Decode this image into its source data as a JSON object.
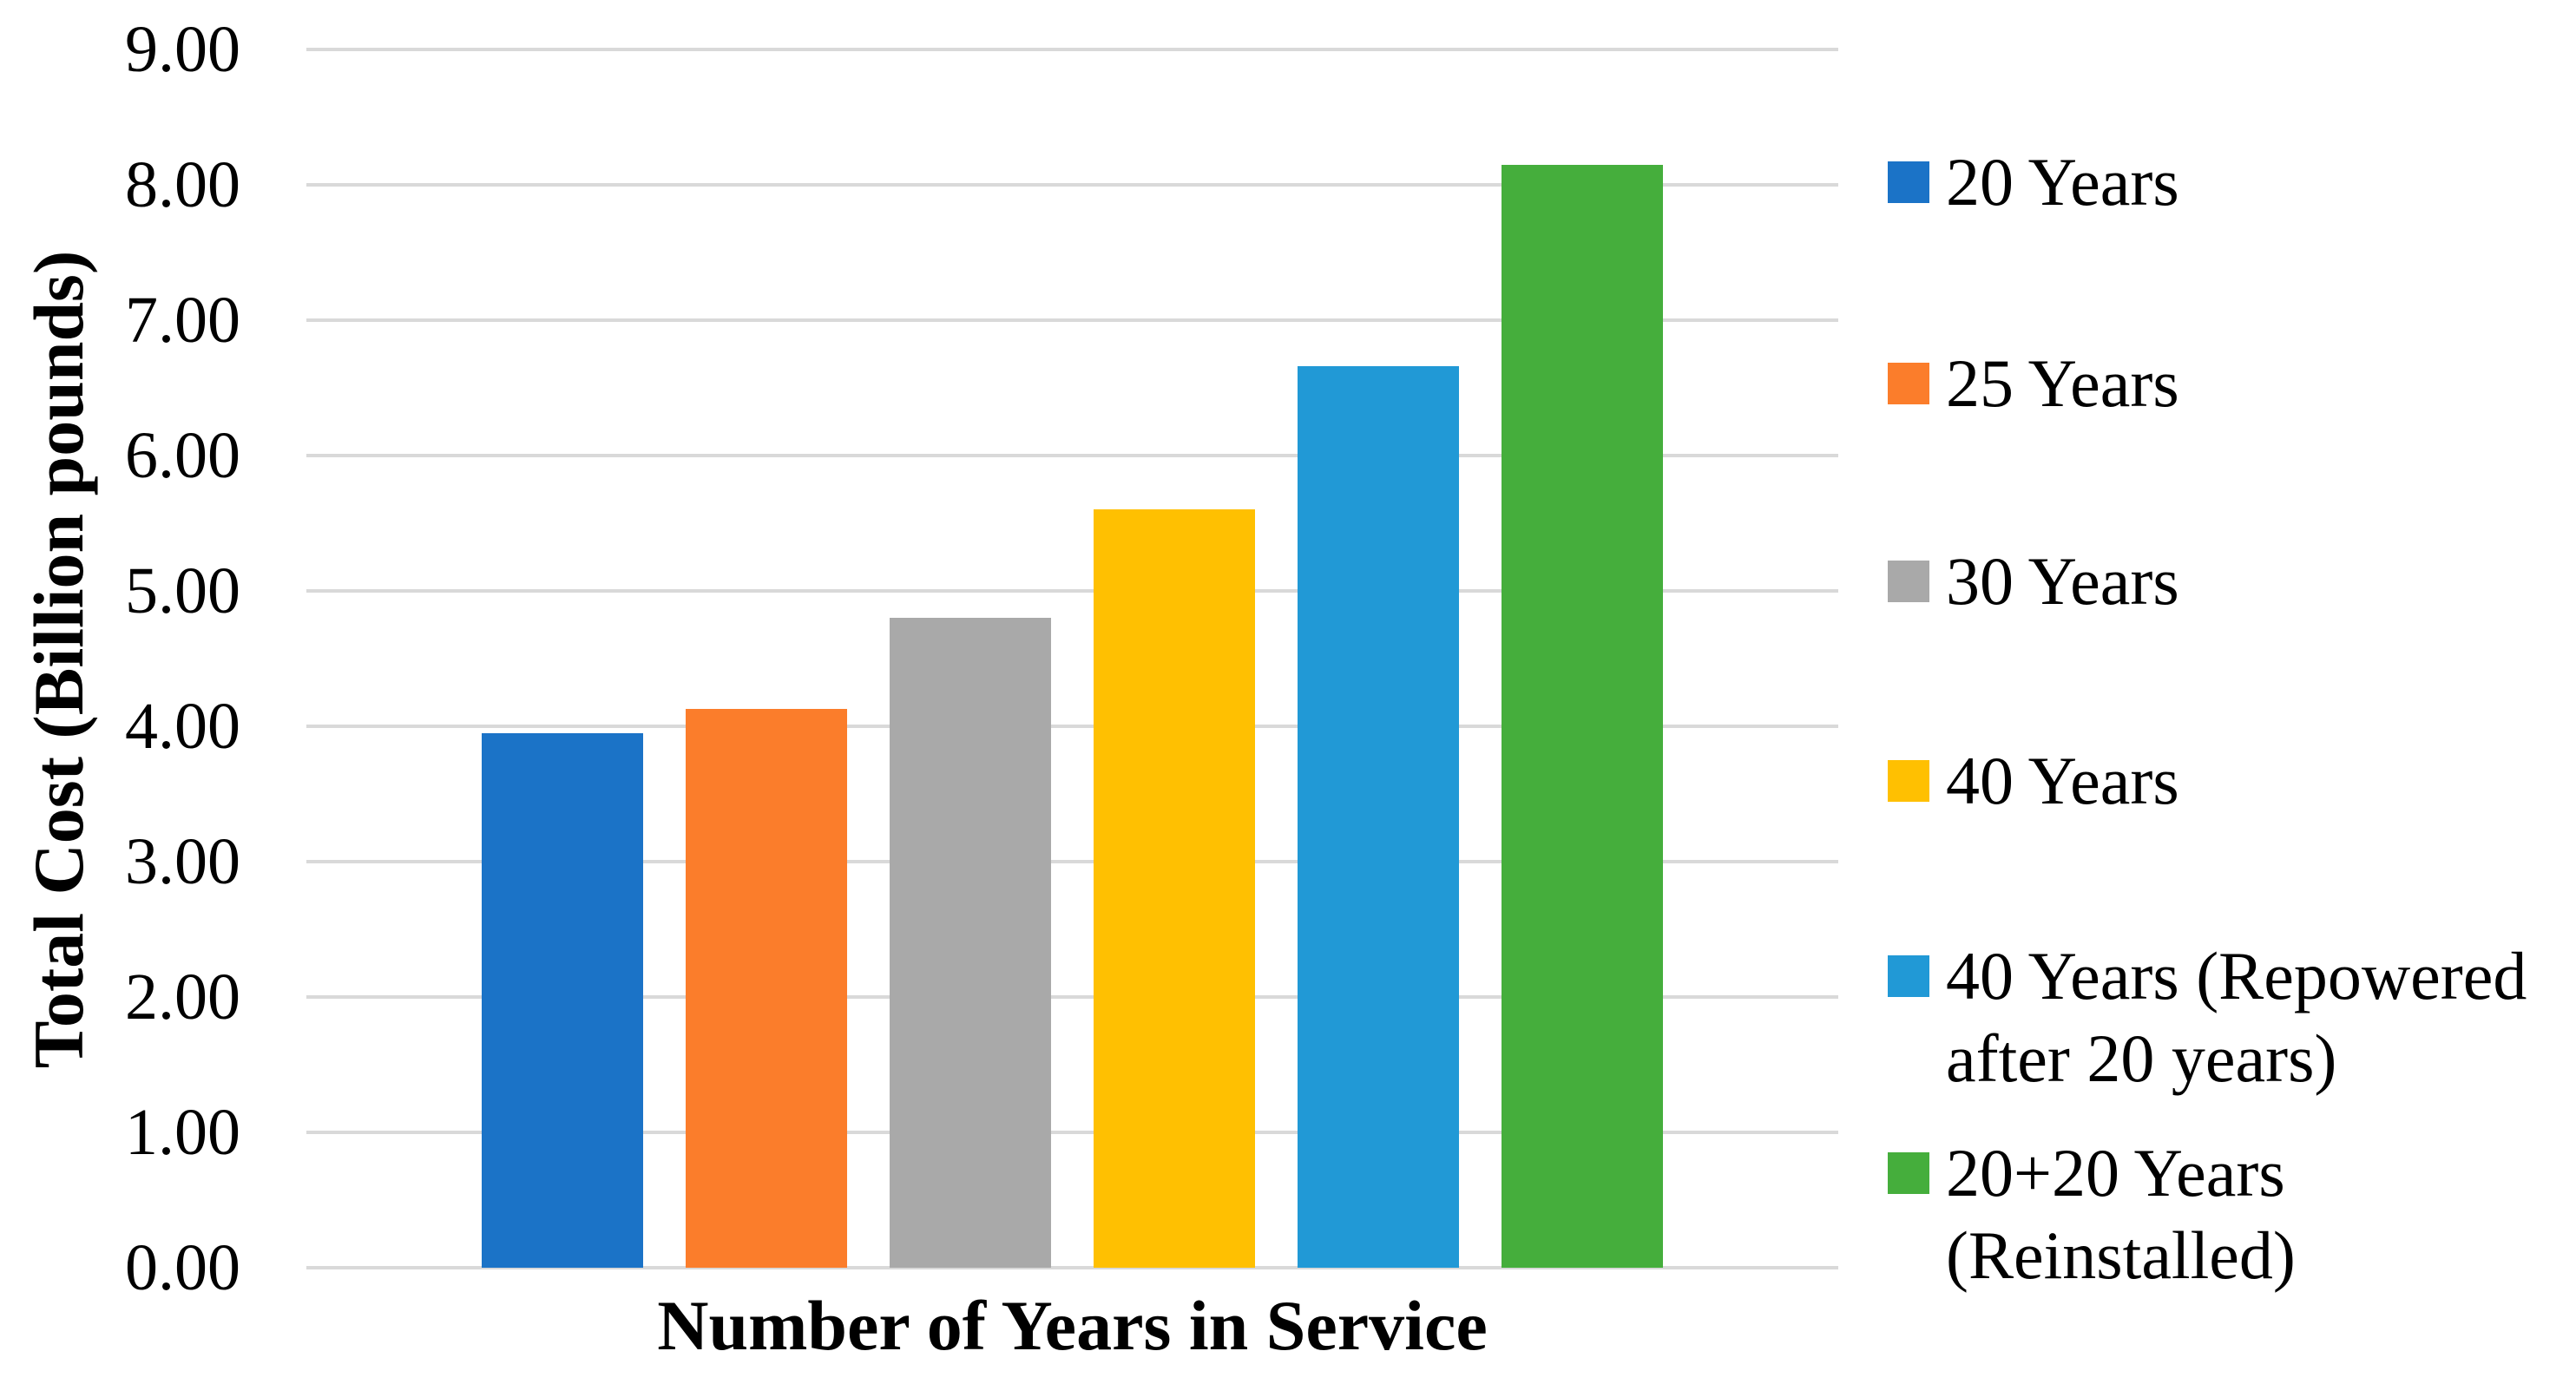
{
  "figure": {
    "background": "#FFFFFF",
    "text_color": "#000000"
  },
  "chart_data": {
    "type": "bar",
    "title": "",
    "xlabel": "Number of Years in Service",
    "ylabel": "Total Cost (Billion pounds)",
    "categories": [
      "20 Years",
      "25 Years",
      "30 Years",
      "40 Years",
      "40 Years (Repowered after 20 years)",
      "20+20 Years (Reinstalled)"
    ],
    "values": [
      3.95,
      4.13,
      4.8,
      5.6,
      6.66,
      8.15
    ],
    "bar_colors": [
      "#1B73C7",
      "#FB7D2B",
      "#A9A9A9",
      "#FFC001",
      "#2199D6",
      "#45AE3C"
    ],
    "ylim": [
      0,
      9
    ],
    "ytick_step": 1,
    "ytick_labels_top_to_bottom": [
      "9.00",
      "8.00",
      "7.00",
      "6.00",
      "5.00",
      "4.00",
      "3.00",
      "2.00",
      "1.00",
      "0.00"
    ],
    "grid": true,
    "gridline_color": "#D9D9D9",
    "legend_position": "right",
    "legend": [
      {
        "label": "20 Years",
        "color": "#1B73C7"
      },
      {
        "label": "25 Years",
        "color": "#FB7D2B"
      },
      {
        "label": "30 Years",
        "color": "#A9A9A9"
      },
      {
        "label": "40 Years",
        "color": "#FFC001"
      },
      {
        "label": "40 Years (Repowered after 20 years)",
        "color": "#2199D6"
      },
      {
        "label": "20+20 Years (Reinstalled)",
        "color": "#45AE3C"
      }
    ]
  }
}
